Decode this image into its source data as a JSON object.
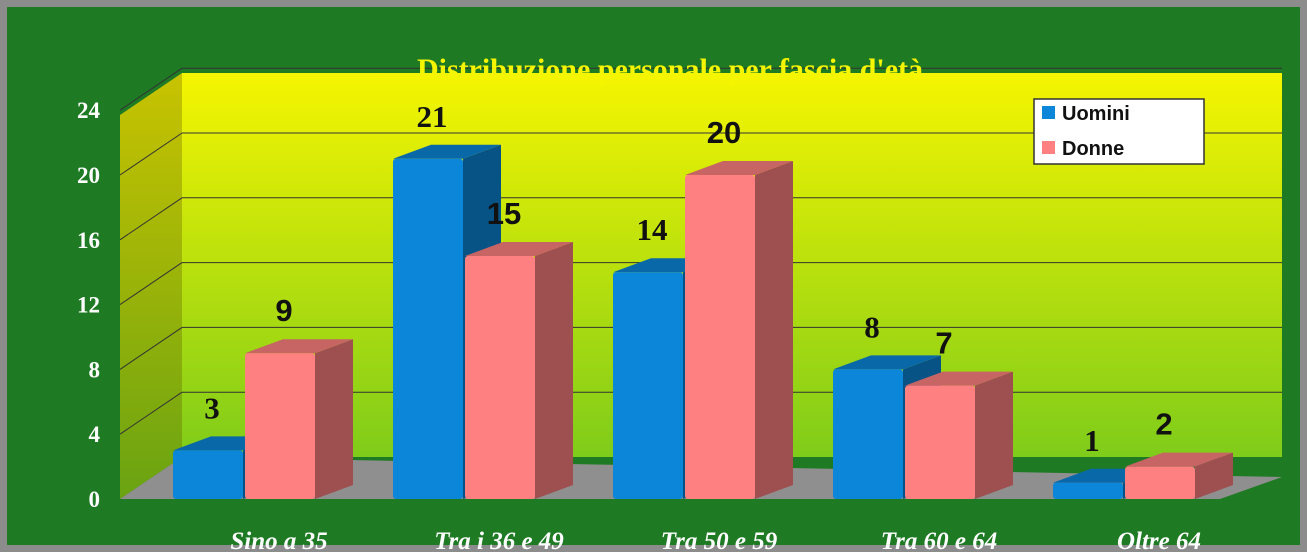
{
  "chart_data": {
    "type": "bar",
    "title": "Distribuzione personale per fascia d'età",
    "categories": [
      "Sino a 35",
      "Tra i 36 e  49",
      "Tra 50 e 59",
      "Tra 60 e 64",
      "Oltre 64"
    ],
    "series": [
      {
        "name": "Uomini",
        "values": [
          3,
          21,
          14,
          8,
          1
        ],
        "color": "#0b86d8"
      },
      {
        "name": "Donne",
        "values": [
          9,
          15,
          20,
          7,
          2
        ],
        "color": "#ff8080"
      }
    ],
    "yticks": [
      "0",
      "4",
      "8",
      "12",
      "16",
      "20",
      "24"
    ],
    "ylim": [
      0,
      24
    ],
    "grid": true,
    "legend": "top-right",
    "style": "3d-column",
    "colors": {
      "background": "#1e7b24",
      "plot_top": "#f5f500",
      "plot_bottom": "#7fcc1a",
      "floor": "#8f8f8f",
      "title": "#f5f500"
    }
  }
}
